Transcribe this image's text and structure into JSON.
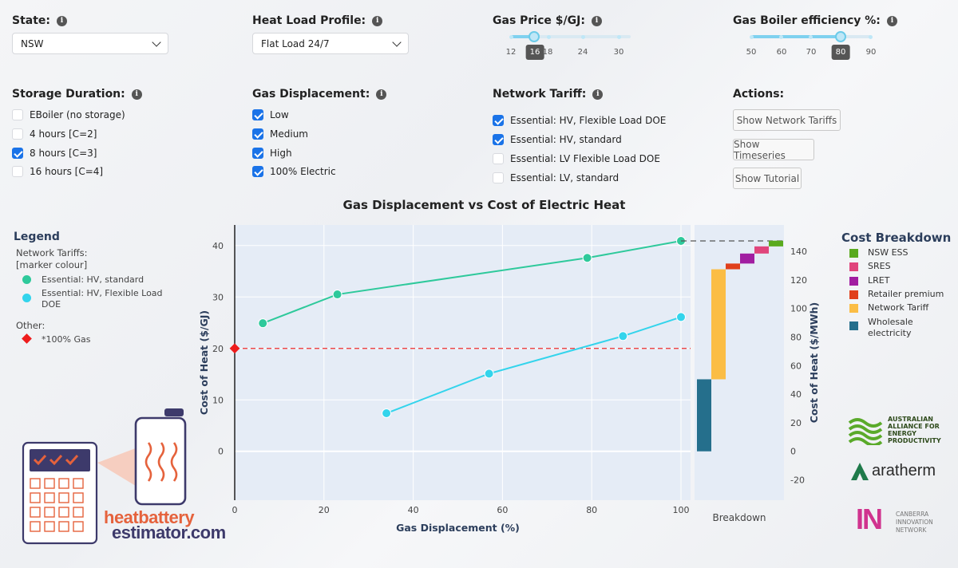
{
  "controls": {
    "state": {
      "label": "State:",
      "value": "NSW"
    },
    "heat_load": {
      "label": "Heat Load Profile:",
      "value": "Flat Load 24/7"
    },
    "gas_price": {
      "label": "Gas Price $/GJ:",
      "ticks": [
        "12",
        "16",
        "18",
        "24",
        "30"
      ],
      "selected": "16"
    },
    "boiler_eff": {
      "label": "Gas Boiler efficiency %:",
      "ticks": [
        "50",
        "60",
        "70",
        "80",
        "90"
      ],
      "selected": "80"
    },
    "storage": {
      "label": "Storage Duration:",
      "options": [
        {
          "label": "EBoiler (no storage)",
          "checked": false
        },
        {
          "label": "4 hours [C=2]",
          "checked": false
        },
        {
          "label": "8 hours [C=3]",
          "checked": true
        },
        {
          "label": "16 hours [C=4]",
          "checked": false
        }
      ]
    },
    "gas_displacement": {
      "label": "Gas Displacement:",
      "options": [
        {
          "label": "Low",
          "checked": true
        },
        {
          "label": "Medium",
          "checked": true
        },
        {
          "label": "High",
          "checked": true
        },
        {
          "label": "100% Electric",
          "checked": true
        }
      ]
    },
    "network_tariff": {
      "label": "Network Tariff:",
      "options": [
        {
          "label": "Essential: HV, Flexible Load DOE",
          "checked": true
        },
        {
          "label": "Essential: HV, standard",
          "checked": true
        },
        {
          "label": "Essential: LV Flexible Load DOE",
          "checked": false
        },
        {
          "label": "Essential: LV, standard",
          "checked": false
        }
      ]
    },
    "actions": {
      "label": "Actions:",
      "buttons": [
        "Show Network Tariffs",
        "Show Timeseries",
        "Show Tutorial"
      ]
    }
  },
  "legend": {
    "title": "Legend",
    "subtitle": "Network Tariffs:\n[marker colour]",
    "items": [
      {
        "label": "Essential: HV, standard",
        "color": "#2ec99b"
      },
      {
        "label": "Essential: HV, Flexible Load DOE",
        "color": "#33d4ec"
      }
    ],
    "other_title": "Other:",
    "other_item": {
      "label": "*100% Gas",
      "color": "#ee1c1c"
    }
  },
  "logo": {
    "line1": "heatbattery",
    "line2": "estimator.com"
  },
  "cost_breakdown": {
    "title": "Cost Breakdown",
    "items": [
      {
        "label": "NSW ESS",
        "color": "#5aaa1e"
      },
      {
        "label": "SRES",
        "color": "#e0457c"
      },
      {
        "label": "LRET",
        "color": "#a11ea1"
      },
      {
        "label": "Retailer premium",
        "color": "#e0401c"
      },
      {
        "label": "Network Tariff",
        "color": "#fbbd45"
      },
      {
        "label": "Wholesale electricity",
        "color": "#256f8c"
      }
    ]
  },
  "partners": {
    "aaep": "AUSTRALIAN ALLIANCE FOR ENERGY PRODUCTIVITY",
    "aratherm": "aratherm",
    "cin_mark": "IN",
    "cin_text": "CANBERRA INNOVATION NETWORK"
  },
  "chart_data": {
    "type": "line",
    "title": "Gas Displacement vs Cost of Electric Heat",
    "xlabel": "Gas Displacement (%)",
    "ylabel": "Cost of Heat ($/GJ)",
    "ylabel2": "Cost of Heat ($/MWh)",
    "xlim": [
      0,
      100
    ],
    "ylim": [
      -9.5,
      44
    ],
    "y2lim": [
      -34.2,
      158.4
    ],
    "x_ticks": [
      0,
      20,
      40,
      60,
      80,
      100
    ],
    "y_ticks": [
      0,
      10,
      20,
      30,
      40
    ],
    "y2_ticks": [
      -20,
      0,
      20,
      40,
      60,
      80,
      100,
      120,
      140
    ],
    "series": [
      {
        "name": "Essential: HV, standard",
        "color": "#2ec99b",
        "x": [
          6.3,
          23,
          79,
          100
        ],
        "y": [
          24.9,
          30.5,
          37.6,
          40.9
        ]
      },
      {
        "name": "Essential: HV, Flexible Load DOE",
        "color": "#33d4ec",
        "x": [
          34,
          57,
          87,
          100
        ],
        "y": [
          7.4,
          15.1,
          22.4,
          26.1
        ]
      }
    ],
    "gas_reference": {
      "label": "*100% Gas",
      "y": 20
    },
    "breakdown": {
      "label": "Breakdown",
      "segments": [
        {
          "name": "Wholesale electricity",
          "from": 0,
          "to": 50.4
        },
        {
          "name": "Network Tariff",
          "from": 50.4,
          "to": 127.4
        },
        {
          "name": "Retailer premium",
          "from": 127.4,
          "to": 131.4
        },
        {
          "name": "LRET",
          "from": 131.4,
          "to": 138.4
        },
        {
          "name": "SRES",
          "from": 138.4,
          "to": 143.4
        },
        {
          "name": "NSW ESS",
          "from": 143.4,
          "to": 147.4
        }
      ]
    }
  }
}
